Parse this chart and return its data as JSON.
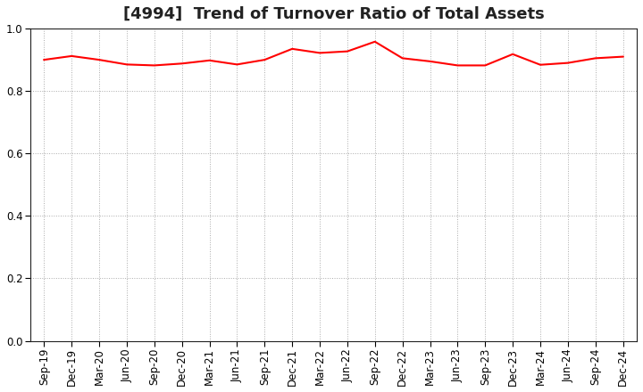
{
  "title": "[4994]  Trend of Turnover Ratio of Total Assets",
  "labels": [
    "Sep-19",
    "Dec-19",
    "Mar-20",
    "Jun-20",
    "Sep-20",
    "Dec-20",
    "Mar-21",
    "Jun-21",
    "Sep-21",
    "Dec-21",
    "Mar-22",
    "Jun-22",
    "Sep-22",
    "Dec-22",
    "Mar-23",
    "Jun-23",
    "Sep-23",
    "Dec-23",
    "Mar-24",
    "Jun-24",
    "Sep-24",
    "Dec-24"
  ],
  "values": [
    0.9,
    0.912,
    0.9,
    0.885,
    0.882,
    0.888,
    0.898,
    0.885,
    0.9,
    0.935,
    0.922,
    0.927,
    0.958,
    0.905,
    0.895,
    0.882,
    0.882,
    0.918,
    0.884,
    0.89,
    0.905,
    0.91
  ],
  "line_color": "#ff0000",
  "line_width": 1.5,
  "ylim": [
    0.0,
    1.0
  ],
  "yticks": [
    0.0,
    0.2,
    0.4,
    0.6,
    0.8,
    1.0
  ],
  "background_color": "#ffffff",
  "grid_color": "#aaaaaa",
  "title_fontsize": 13,
  "tick_fontsize": 8.5,
  "spine_color": "#222222"
}
